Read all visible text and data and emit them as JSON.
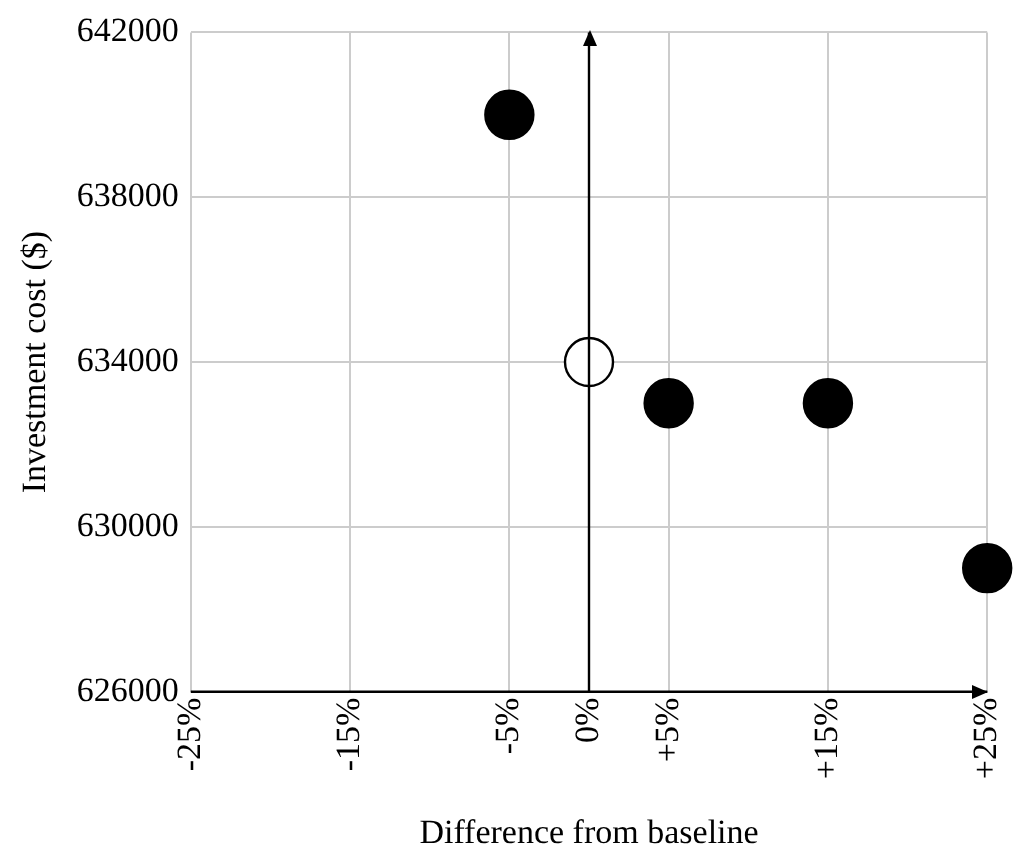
{
  "chart_data": {
    "type": "scatter",
    "xlabel": "Difference from baseline",
    "ylabel": "Investment cost ($)",
    "xlim": [
      -25,
      25
    ],
    "xticks": [
      {
        "value": -25,
        "label": "-25%"
      },
      {
        "value": -15,
        "label": "-15%"
      },
      {
        "value": -5,
        "label": "-5%"
      },
      {
        "value": 0,
        "label": "0%"
      },
      {
        "value": 5,
        "label": "+5%"
      },
      {
        "value": 15,
        "label": "+15%"
      },
      {
        "value": 25,
        "label": "+25%"
      }
    ],
    "ylim": [
      626000,
      642000
    ],
    "yticks": [
      626000,
      630000,
      634000,
      638000,
      642000
    ],
    "grid": true,
    "legend": false,
    "marker": "circle",
    "series": [
      {
        "color": "#000000",
        "x": [
          -5,
          5,
          15,
          25
        ],
        "values": [
          640000,
          633000,
          633000,
          629000
        ]
      },
      {
        "color": "#ffffff",
        "x": [
          0
        ],
        "values": [
          634000
        ]
      }
    ]
  }
}
